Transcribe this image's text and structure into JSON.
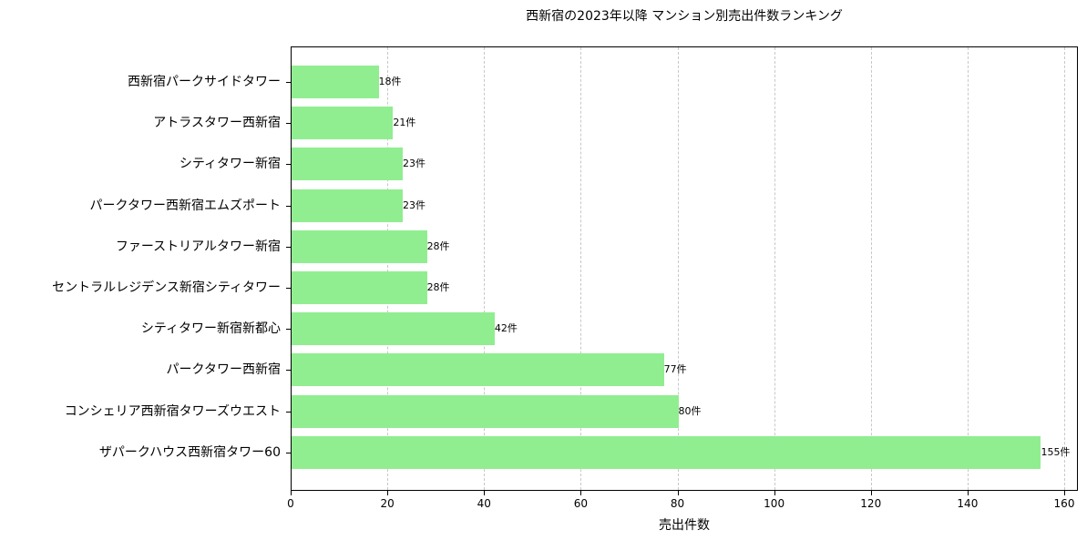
{
  "chart_data": {
    "type": "bar",
    "orientation": "horizontal",
    "title": "西新宿の2023年以降 マンション別売出件数ランキング",
    "xlabel": "売出件数",
    "ylabel": "",
    "xlim": [
      0,
      163
    ],
    "xticks": [
      0,
      20,
      40,
      60,
      80,
      100,
      120,
      140,
      160
    ],
    "grid": {
      "axis": "x",
      "style": "dashed",
      "color": "#c8c8c8"
    },
    "bar_color": "#90ee90",
    "value_suffix": "件",
    "categories": [
      "西新宿パークサイドタワー",
      "アトラスタワー西新宿",
      "シティタワー新宿",
      "パークタワー西新宿エムズポート",
      "ファーストリアルタワー新宿",
      "セントラルレジデンス新宿シティタワー",
      "シティタワー新宿新都心",
      "パークタワー西新宿",
      "コンシェリア西新宿タワーズウエスト",
      "ザパークハウス西新宿タワー60"
    ],
    "values": [
      18,
      21,
      23,
      23,
      28,
      28,
      42,
      77,
      80,
      155
    ],
    "value_labels": [
      "18件",
      "21件",
      "23件",
      "23件",
      "28件",
      "28件",
      "42件",
      "77件",
      "80件",
      "155件"
    ]
  }
}
